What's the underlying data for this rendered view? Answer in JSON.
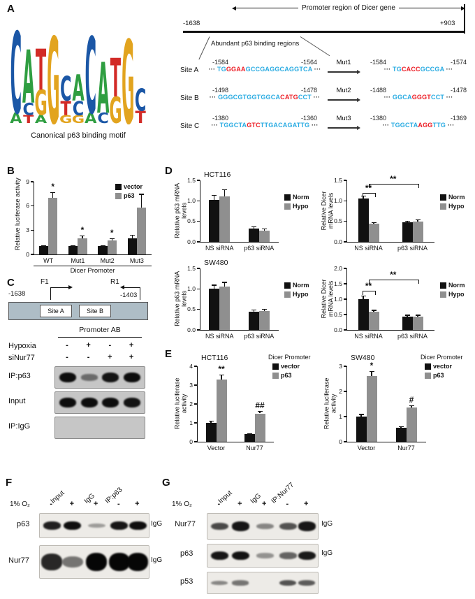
{
  "accent_colors": {
    "black": "#111111",
    "gray": "#8f8f8f",
    "seq_blue": "#29abe2",
    "seq_red": "#ec1c24"
  },
  "panels": {
    "A": {
      "label": "A",
      "logo_caption": "Canonical p63 binding motif",
      "logo_columns": [
        [
          {
            "ch": "A",
            "h": 0.1
          },
          {
            "ch": "C",
            "h": 0.8
          }
        ],
        [
          {
            "ch": "T",
            "h": 0.08
          },
          {
            "ch": "C",
            "h": 0.12
          },
          {
            "ch": "A",
            "h": 0.52
          }
        ],
        [
          {
            "ch": "A",
            "h": 0.08
          },
          {
            "ch": "G",
            "h": 0.25
          },
          {
            "ch": "T",
            "h": 0.4
          }
        ],
        [
          {
            "ch": "G",
            "h": 0.85
          }
        ],
        [
          {
            "ch": "G",
            "h": 0.08
          },
          {
            "ch": "T",
            "h": 0.14
          },
          {
            "ch": "C",
            "h": 0.24
          }
        ],
        [
          {
            "ch": "G",
            "h": 0.08
          },
          {
            "ch": "C",
            "h": 0.14
          },
          {
            "ch": "A",
            "h": 0.26
          }
        ],
        [
          {
            "ch": "A",
            "h": 0.1
          },
          {
            "ch": "C",
            "h": 0.75
          }
        ],
        [
          {
            "ch": "C",
            "h": 0.1
          },
          {
            "ch": "A",
            "h": 0.5
          }
        ],
        [
          {
            "ch": "G",
            "h": 0.26
          },
          {
            "ch": "T",
            "h": 0.38
          }
        ],
        [
          {
            "ch": "G",
            "h": 0.82
          }
        ],
        [
          {
            "ch": "T",
            "h": 0.12
          },
          {
            "ch": "C",
            "h": 0.22
          }
        ]
      ],
      "promoter_header": "Promoter region of Dicer gene",
      "promoter_start": "-1638",
      "promoter_end": "+903",
      "regions_label": "Abundant p63 binding regions",
      "sites": [
        {
          "name": "Site A",
          "start": "-1584",
          "end": "-1564",
          "mut_name": "Mut1",
          "mut_start": "-1584",
          "mut_end": "-1574",
          "seq": [
            {
              "t": "··· ",
              "c": "k"
            },
            {
              "t": "TG",
              "c": "b"
            },
            {
              "t": "GGAA",
              "c": "r"
            },
            {
              "t": "GCCGAGGCAGGTCA",
              "c": "b"
            },
            {
              "t": " ···",
              "c": "k"
            }
          ],
          "mut_seq": [
            {
              "t": "··· ",
              "c": "k"
            },
            {
              "t": "TG",
              "c": "b"
            },
            {
              "t": "CACC",
              "c": "r"
            },
            {
              "t": "GCCGA",
              "c": "b"
            },
            {
              "t": " ···",
              "c": "k"
            }
          ]
        },
        {
          "name": "Site B",
          "start": "-1498",
          "end": "-1478",
          "mut_name": "Mut2",
          "mut_start": "-1488",
          "mut_end": "-1478",
          "seq": [
            {
              "t": "··· ",
              "c": "k"
            },
            {
              "t": "GGGCGTGGTGGCA",
              "c": "b"
            },
            {
              "t": "CATG",
              "c": "r"
            },
            {
              "t": "CCT",
              "c": "b"
            },
            {
              "t": " ···",
              "c": "k"
            }
          ],
          "mut_seq": [
            {
              "t": "··· ",
              "c": "k"
            },
            {
              "t": "GGCA",
              "c": "b"
            },
            {
              "t": "GGGT",
              "c": "r"
            },
            {
              "t": "CCT",
              "c": "b"
            },
            {
              "t": " ···",
              "c": "k"
            }
          ]
        },
        {
          "name": "Site C",
          "start": "-1380",
          "end": "-1360",
          "mut_name": "Mut3",
          "mut_start": "-1380",
          "mut_end": "-1369",
          "seq": [
            {
              "t": "··· ",
              "c": "k"
            },
            {
              "t": "TGGCTA",
              "c": "b"
            },
            {
              "t": "GTC",
              "c": "r"
            },
            {
              "t": "TTGACAGATTG",
              "c": "b"
            },
            {
              "t": " ···",
              "c": "k"
            }
          ],
          "mut_seq": [
            {
              "t": "··· ",
              "c": "k"
            },
            {
              "t": "TGGCTA",
              "c": "b"
            },
            {
              "t": "AGG",
              "c": "r"
            },
            {
              "t": "TTG",
              "c": "b"
            },
            {
              "t": " ···",
              "c": "k"
            }
          ]
        }
      ]
    },
    "B": {
      "label": "B"
    },
    "C": {
      "label": "C",
      "f1": "F1",
      "r1": "R1",
      "coord_left": "-1638",
      "coord_right": "-1403",
      "site_a": "Site A",
      "site_b": "Site B",
      "gel_title": "Promoter AB",
      "condition_rows": [
        {
          "label": "Hypoxia",
          "signs": [
            "-",
            "+",
            "-",
            "+"
          ]
        },
        {
          "label": "siNur77",
          "signs": [
            "-",
            "-",
            "+",
            "+"
          ]
        }
      ],
      "gel_rows": [
        {
          "label": "IP:p63",
          "bands": [
            0.95,
            0.3,
            0.9,
            0.95
          ]
        },
        {
          "label": "Input",
          "bands": [
            0.95,
            0.95,
            0.95,
            0.9
          ]
        },
        {
          "label": "IP:IgG",
          "bands": [
            0,
            0,
            0,
            0
          ]
        }
      ]
    },
    "D": {
      "label": "D"
    },
    "E": {
      "label": "E"
    },
    "F": {
      "label": "F",
      "o2_label": "1% O₂",
      "lane_groups": [
        "Input",
        "IgG",
        "IP:p63"
      ],
      "signs": [
        "-",
        "+",
        "+",
        "-",
        "+"
      ],
      "rows": [
        {
          "label": "p63",
          "right_label": "IgG",
          "bands": [
            0.85,
            0.95,
            0.12,
            0.9,
            0.95
          ]
        },
        {
          "label": "Nur77",
          "right_label": "IgG",
          "bands": [
            0.8,
            0.35,
            1,
            1,
            1
          ]
        }
      ]
    },
    "G": {
      "label": "G",
      "o2_label": "1% O₂",
      "lane_groups": [
        "Input",
        "IgG",
        "IP:Nur77"
      ],
      "signs": [
        "-",
        "+",
        "+",
        "-",
        "+"
      ],
      "rows": [
        {
          "label": "Nur77",
          "right_label": "IgG",
          "bands": [
            0.6,
            0.9,
            0.25,
            0.55,
            0.9
          ]
        },
        {
          "label": "p63",
          "right_label": "IgG",
          "bands": [
            0.9,
            0.92,
            0.18,
            0.45,
            0.88
          ]
        },
        {
          "label": "p53",
          "right_label": "",
          "bands": [
            0.25,
            0.35,
            0,
            0.55,
            0.5
          ]
        }
      ]
    }
  },
  "chart_data": [
    {
      "id": "B-luciferase",
      "type": "bar",
      "ylabel": "Relative luciferase activity",
      "xlabel": "Dicer Promoter",
      "categories": [
        "WT",
        "Mut1",
        "Mut2",
        "Mut3"
      ],
      "series": [
        {
          "name": "vector",
          "color": "black",
          "values": [
            1.0,
            1.0,
            1.0,
            2.0
          ],
          "errors": [
            0.15,
            0.15,
            0.15,
            0.45
          ]
        },
        {
          "name": "p63",
          "color": "gray",
          "values": [
            7.0,
            2.0,
            1.7,
            5.8
          ],
          "errors": [
            0.7,
            0.35,
            0.3,
            1.7
          ]
        }
      ],
      "ylim": [
        0,
        9
      ],
      "yticks": [
        "0",
        "3",
        "6",
        "9"
      ],
      "legend": {
        "pos": "inside-top-right"
      },
      "annotations": [
        {
          "type": "star",
          "text": "*",
          "g": 0,
          "s": 1
        },
        {
          "type": "star",
          "text": "*",
          "g": 1,
          "s": 1
        },
        {
          "type": "star",
          "text": "*",
          "g": 2,
          "s": 1
        }
      ],
      "layout": {
        "ml": 36,
        "mr": 10,
        "mt": 14,
        "mb": 34,
        "ylw": 130
      }
    },
    {
      "id": "D-HCT116-p63",
      "type": "bar",
      "title": "HCT116",
      "ylabel": "Relative p63 mRNA levels",
      "categories": [
        "NS siRNA",
        "p63 siRNA"
      ],
      "series": [
        {
          "name": "Norm",
          "color": "black",
          "values": [
            1.02,
            0.33
          ],
          "errors": [
            0.12,
            0.04
          ]
        },
        {
          "name": "Hypo",
          "color": "gray",
          "values": [
            1.1,
            0.28
          ],
          "errors": [
            0.18,
            0.04
          ]
        }
      ],
      "ylim": [
        0,
        1.5
      ],
      "yticks": [
        "0.0",
        "0.5",
        "1.0",
        "1.5"
      ],
      "legend": {
        "pos": "right"
      },
      "layout": {
        "ml": 40,
        "mr": 52,
        "mt": 14,
        "mb": 20,
        "ylw": 80
      }
    },
    {
      "id": "D-HCT116-dicer",
      "type": "bar",
      "ylabel": "Relative Dicer mRNA levels",
      "categories": [
        "NS siRNA",
        "p63 siRNA"
      ],
      "series": [
        {
          "name": "Norm",
          "color": "black",
          "values": [
            1.05,
            0.47
          ],
          "errors": [
            0.07,
            0.04
          ]
        },
        {
          "name": "Hypo",
          "color": "gray",
          "values": [
            0.44,
            0.5
          ],
          "errors": [
            0.04,
            0.05
          ]
        }
      ],
      "ylim": [
        0,
        1.5
      ],
      "yticks": [
        "0.0",
        "0.5",
        "1.0",
        "1.5"
      ],
      "legend": {
        "pos": "right"
      },
      "annotations": [
        {
          "type": "bracket",
          "x1": 0.18,
          "x2": 0.32,
          "yf": 0.8,
          "text": "**"
        },
        {
          "type": "bracket",
          "x1": 0.25,
          "x2": 0.81,
          "yf": 0.94,
          "text": "**"
        }
      ],
      "layout": {
        "ml": 40,
        "mr": 52,
        "mt": 14,
        "mb": 20,
        "ylw": 80
      }
    },
    {
      "id": "D-SW480-p63",
      "type": "bar",
      "title": "SW480",
      "ylabel": "Relative p63 mRNA levels",
      "categories": [
        "NS siRNA",
        "p63 siRNA"
      ],
      "series": [
        {
          "name": "Norm",
          "color": "black",
          "values": [
            1.0,
            0.44
          ],
          "errors": [
            0.1,
            0.05
          ]
        },
        {
          "name": "Hypo",
          "color": "gray",
          "values": [
            1.05,
            0.46
          ],
          "errors": [
            0.12,
            0.05
          ]
        }
      ],
      "ylim": [
        0,
        1.5
      ],
      "yticks": [
        "0.0",
        "0.5",
        "1.0",
        "1.5"
      ],
      "legend": {
        "pos": "right"
      },
      "layout": {
        "ml": 40,
        "mr": 52,
        "mt": 14,
        "mb": 20,
        "ylw": 80
      }
    },
    {
      "id": "D-SW480-dicer",
      "type": "bar",
      "ylabel": "Relative Dicer mRNA levels",
      "categories": [
        "NS siRNA",
        "p63 siRNA"
      ],
      "series": [
        {
          "name": "Norm",
          "color": "black",
          "values": [
            1.0,
            0.44
          ],
          "errors": [
            0.12,
            0.05
          ]
        },
        {
          "name": "Hypo",
          "color": "gray",
          "values": [
            0.58,
            0.44
          ],
          "errors": [
            0.07,
            0.05
          ]
        }
      ],
      "ylim": [
        0,
        2
      ],
      "yticks": [
        "0.0",
        "0.5",
        "1.0",
        "1.5",
        "2.0"
      ],
      "legend": {
        "pos": "right"
      },
      "annotations": [
        {
          "type": "bracket",
          "x1": 0.18,
          "x2": 0.32,
          "yf": 0.64,
          "text": "**"
        },
        {
          "type": "bracket",
          "x1": 0.25,
          "x2": 0.81,
          "yf": 0.82,
          "text": "**"
        }
      ],
      "layout": {
        "ml": 40,
        "mr": 52,
        "mt": 14,
        "mb": 20,
        "ylw": 80
      }
    },
    {
      "id": "E-HCT116",
      "type": "bar",
      "title": "HCT116",
      "ylabel": "Relative luciferase activity",
      "categories": [
        "Vector",
        "Nur77"
      ],
      "series": [
        {
          "name": "vector",
          "color": "black",
          "values": [
            1.0,
            0.4
          ],
          "errors": [
            0.1,
            0.05
          ]
        },
        {
          "name": "p63",
          "color": "gray",
          "values": [
            3.3,
            1.5
          ],
          "errors": [
            0.25,
            0.12
          ]
        }
      ],
      "ylim": [
        0,
        4
      ],
      "yticks": [
        "0",
        "1",
        "2",
        "3",
        "4"
      ],
      "legend": {
        "pos": "top-right",
        "title": "Dicer Promoter"
      },
      "annotations": [
        {
          "type": "star",
          "text": "**",
          "g": 0,
          "s": 1
        },
        {
          "type": "star",
          "text": "##",
          "g": 1,
          "s": 1
        }
      ],
      "layout": {
        "ml": 36,
        "mr": 64,
        "mt": 18,
        "mb": 20,
        "ylw": 92
      }
    },
    {
      "id": "E-SW480",
      "type": "bar",
      "title": "SW480",
      "ylabel": "Relative luciferase activity",
      "categories": [
        "Vector",
        "Nur77"
      ],
      "series": [
        {
          "name": "vector",
          "color": "black",
          "values": [
            1.0,
            0.55
          ],
          "errors": [
            0.1,
            0.06
          ]
        },
        {
          "name": "p63",
          "color": "gray",
          "values": [
            2.6,
            1.35
          ],
          "errors": [
            0.2,
            0.1
          ]
        }
      ],
      "ylim": [
        0,
        3
      ],
      "yticks": [
        "0",
        "1",
        "2",
        "3"
      ],
      "legend": {
        "pos": "top-right",
        "title": "Dicer Promoter"
      },
      "annotations": [
        {
          "type": "star",
          "text": "*",
          "g": 0,
          "s": 1
        },
        {
          "type": "star",
          "text": "#",
          "g": 1,
          "s": 1
        }
      ],
      "layout": {
        "ml": 36,
        "mr": 64,
        "mt": 18,
        "mb": 20,
        "ylw": 92
      }
    }
  ]
}
